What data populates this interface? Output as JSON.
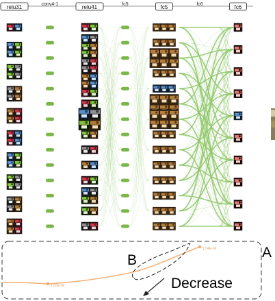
{
  "columns": [
    {
      "key": "relu31",
      "label": "relu31",
      "tab": true,
      "group_sizes": [
        1,
        2,
        2,
        2,
        2,
        2,
        2,
        2,
        2,
        2
      ]
    },
    {
      "key": "conv41",
      "label": "conv4-1",
      "tab": false,
      "node_count": 14
    },
    {
      "key": "relu41",
      "label": "relu41",
      "tab": true,
      "group_sizes": [
        1,
        2,
        2,
        2,
        2,
        1,
        3,
        1,
        1,
        1,
        1,
        2,
        1,
        1
      ]
    },
    {
      "key": "fc5a",
      "label": "fc5",
      "tab": false,
      "node_count": 14
    },
    {
      "key": "fc5b",
      "label": "fc5",
      "tab": true,
      "group_sizes": [
        1,
        1,
        2,
        1,
        1,
        2,
        2,
        1,
        1,
        1,
        1,
        1,
        1,
        1
      ]
    },
    {
      "key": "fc6a",
      "label": "fc6",
      "tab": false
    },
    {
      "key": "fc6b",
      "label": "fc6",
      "tab": true,
      "node_count": 10
    }
  ],
  "inset": {
    "label_a": "A",
    "label_b": "B",
    "trend_label": "Decrease",
    "point_start": "1.55E-06",
    "point_end": "1.54E-06"
  },
  "colors": {
    "node": "#7ab648",
    "edge": "#8cc665",
    "curve": "#f5b27a",
    "frame": "#333333"
  }
}
